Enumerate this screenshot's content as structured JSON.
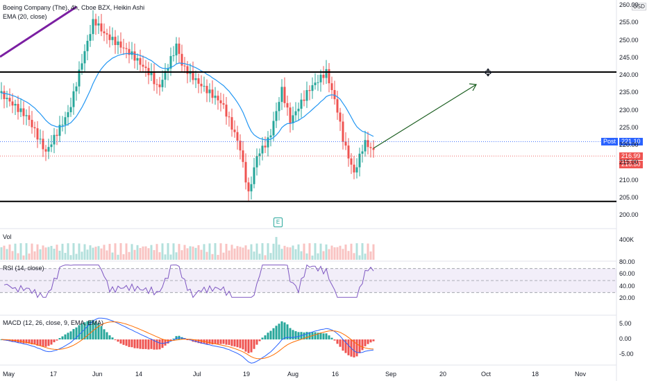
{
  "header": {
    "title": "Boeing Company (The), 4h, Cboe BZX, Heikin Ashi",
    "ema_label": "EMA (20, close)"
  },
  "currency": "USD",
  "price_axis": [
    "260.00",
    "255.00",
    "250.00",
    "245.00",
    "240.00",
    "235.00",
    "230.00",
    "225.00",
    "220.00",
    "215.00",
    "210.00",
    "205.00",
    "200.00"
  ],
  "price_tags": {
    "post_label": "Post",
    "post_price": "221.10",
    "last_price": "216.99",
    "close_price": "216.50"
  },
  "volume": {
    "label": "Vol",
    "axis": "400K"
  },
  "rsi": {
    "label": "RSI (14, close)",
    "axis": [
      "80.00",
      "60.00",
      "40.00",
      "20.00"
    ]
  },
  "macd": {
    "label": "MACD (12, 26, close, 9, EMA, EMA)",
    "axis": [
      "5.00",
      "0.00",
      "-5.00"
    ]
  },
  "earnings_marker": "E",
  "time_axis": [
    "May",
    "17",
    "Jun",
    "14",
    "Jul",
    "19",
    "Aug",
    "16",
    "Sep",
    "20",
    "Oct",
    "18",
    "Nov"
  ],
  "colors": {
    "up": "#26a69a",
    "down": "#ef5350",
    "ema": "#2196f3",
    "rsi": "#7e57c2",
    "macd": "#2962ff",
    "signal": "#ff6d00",
    "trendline": "#7b1fa2",
    "arrow": "#1b5e20",
    "tag_blue": "#2962ff",
    "tag_red": "#ef5350"
  },
  "chart_data": {
    "type": "candlestick",
    "horizontal_levels": [
      241.0,
      204.0
    ],
    "ema_period": 20,
    "price_axis_range": [
      200,
      261
    ],
    "last_close": 216.99
  }
}
